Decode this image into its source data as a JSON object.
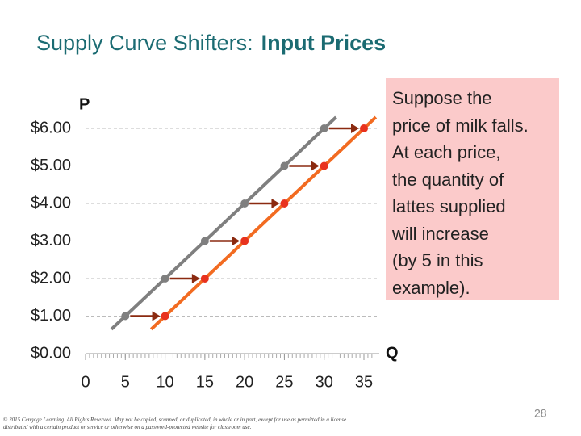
{
  "title": "Supply Curve Shifters:",
  "title_emphasis": "Input Prices",
  "chart_data": {
    "type": "line",
    "y_label": "P",
    "x_label": "Q",
    "xlim": [
      0,
      35
    ],
    "xticks": [
      0,
      5,
      10,
      15,
      20,
      25,
      30,
      35
    ],
    "ylim": [
      0,
      6
    ],
    "yticks": [
      {
        "value": 0,
        "label": "$0.00"
      },
      {
        "value": 1,
        "label": "$1.00"
      },
      {
        "value": 2,
        "label": "$2.00"
      },
      {
        "value": 3,
        "label": "$3.00"
      },
      {
        "value": 4,
        "label": "$4.00"
      },
      {
        "value": 5,
        "label": "$5.00"
      },
      {
        "value": 6,
        "label": "$6.00"
      }
    ],
    "grid": true,
    "series": [
      {
        "color": "#7f7f7f",
        "marker_color": "#7f7f7f",
        "x": [
          5,
          10,
          15,
          20,
          25,
          30
        ],
        "values": [
          1,
          2,
          3,
          4,
          5,
          6
        ]
      },
      {
        "color": "#f26b21",
        "marker_color": "#e8321e",
        "x": [
          10,
          15,
          20,
          25,
          30,
          35
        ],
        "values": [
          1,
          2,
          3,
          4,
          5,
          6
        ]
      }
    ],
    "arrow_color": "#8b2a10"
  },
  "callout": [
    "Suppose the",
    "price of milk falls.",
    "At each price,",
    "the quantity of",
    "lattes supplied",
    "will increase",
    "(by 5 in this",
    "example)."
  ],
  "footer": "© 2015 Cengage Learning. All Rights Reserved. May not be copied, scanned, or duplicated, in whole or in part, except for use as permitted in a license distributed with a certain product or service or otherwise on a password-protected website for classroom use.",
  "page_number": "28"
}
